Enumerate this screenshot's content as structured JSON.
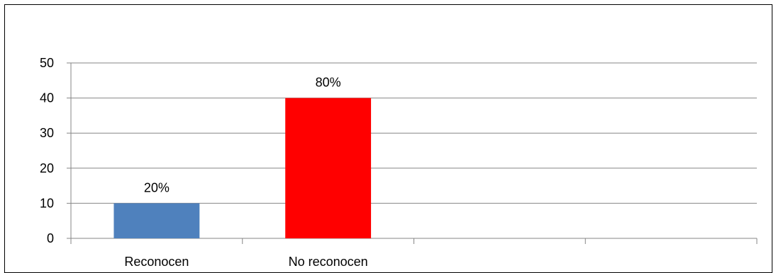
{
  "chart_data": {
    "type": "bar",
    "categories": [
      "Reconocen",
      "No reconocen",
      "",
      ""
    ],
    "values": [
      10,
      40,
      null,
      null
    ],
    "data_labels": [
      "20%",
      "80%",
      "",
      ""
    ],
    "colors": [
      "#4f81bd",
      "#ff0000"
    ],
    "ylim": [
      0,
      50
    ],
    "yticks": [
      0,
      10,
      20,
      30,
      40,
      50
    ],
    "grid": true,
    "title": "",
    "xlabel": "",
    "ylabel": ""
  }
}
